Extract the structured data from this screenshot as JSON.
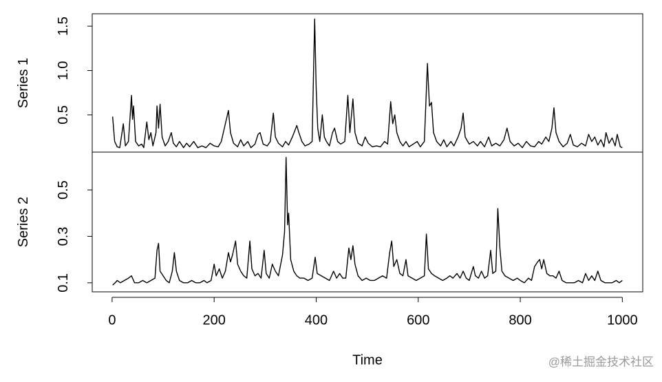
{
  "chart_data": [
    {
      "type": "line",
      "ylabel": "Series 1",
      "color": "#000000",
      "xlim": [
        -39,
        1040
      ],
      "ylim": [
        0.08,
        1.64
      ],
      "yticks": [
        0.5,
        {
          "value": 1,
          "label": "1.0"
        },
        1.5
      ],
      "x": [
        1,
        5,
        10,
        15,
        22,
        26,
        32,
        38,
        40,
        42,
        46,
        52,
        58,
        62,
        68,
        72,
        76,
        80,
        86,
        88,
        91,
        94,
        98,
        104,
        110,
        116,
        120,
        126,
        132,
        140,
        146,
        152,
        160,
        168,
        176,
        184,
        192,
        200,
        208,
        214,
        220,
        224,
        228,
        232,
        238,
        246,
        252,
        258,
        266,
        272,
        280,
        286,
        290,
        296,
        304,
        310,
        316,
        320,
        326,
        334,
        340,
        346,
        354,
        362,
        366,
        372,
        378,
        386,
        392,
        397,
        400,
        403,
        407,
        412,
        416,
        420,
        426,
        432,
        436,
        442,
        448,
        456,
        462,
        466,
        472,
        476,
        482,
        490,
        496,
        502,
        510,
        518,
        526,
        534,
        540,
        546,
        550,
        554,
        558,
        564,
        570,
        576,
        582,
        590,
        598,
        604,
        612,
        618,
        622,
        626,
        630,
        636,
        644,
        650,
        656,
        664,
        670,
        678,
        684,
        688,
        692,
        700,
        708,
        716,
        722,
        730,
        738,
        744,
        752,
        760,
        768,
        774,
        780,
        788,
        796,
        804,
        812,
        820,
        828,
        836,
        842,
        850,
        856,
        862,
        866,
        870,
        876,
        884,
        892,
        898,
        904,
        912,
        920,
        928,
        934,
        940,
        946,
        952,
        958,
        964,
        968,
        974,
        980,
        986,
        990,
        996,
        1000
      ],
      "values": [
        0.48,
        0.2,
        0.14,
        0.13,
        0.4,
        0.15,
        0.2,
        0.72,
        0.45,
        0.6,
        0.2,
        0.15,
        0.17,
        0.13,
        0.42,
        0.22,
        0.3,
        0.15,
        0.3,
        0.6,
        0.35,
        0.62,
        0.25,
        0.15,
        0.2,
        0.3,
        0.18,
        0.14,
        0.2,
        0.13,
        0.18,
        0.14,
        0.2,
        0.13,
        0.15,
        0.13,
        0.18,
        0.15,
        0.14,
        0.2,
        0.35,
        0.45,
        0.55,
        0.3,
        0.18,
        0.14,
        0.22,
        0.15,
        0.2,
        0.13,
        0.17,
        0.28,
        0.3,
        0.17,
        0.15,
        0.2,
        0.52,
        0.25,
        0.18,
        0.14,
        0.2,
        0.16,
        0.26,
        0.38,
        0.3,
        0.2,
        0.15,
        0.17,
        0.2,
        1.58,
        0.8,
        0.35,
        0.2,
        0.5,
        0.25,
        0.2,
        0.15,
        0.3,
        0.35,
        0.2,
        0.17,
        0.2,
        0.72,
        0.3,
        0.68,
        0.3,
        0.18,
        0.15,
        0.25,
        0.18,
        0.14,
        0.15,
        0.14,
        0.2,
        0.17,
        0.65,
        0.4,
        0.5,
        0.3,
        0.2,
        0.15,
        0.2,
        0.14,
        0.17,
        0.2,
        0.14,
        0.2,
        1.08,
        0.6,
        0.64,
        0.3,
        0.2,
        0.15,
        0.22,
        0.14,
        0.2,
        0.15,
        0.25,
        0.35,
        0.52,
        0.25,
        0.17,
        0.2,
        0.15,
        0.2,
        0.14,
        0.25,
        0.15,
        0.18,
        0.15,
        0.22,
        0.35,
        0.2,
        0.15,
        0.18,
        0.13,
        0.2,
        0.15,
        0.14,
        0.2,
        0.17,
        0.25,
        0.2,
        0.35,
        0.58,
        0.3,
        0.2,
        0.14,
        0.18,
        0.28,
        0.16,
        0.14,
        0.18,
        0.15,
        0.28,
        0.2,
        0.25,
        0.16,
        0.22,
        0.14,
        0.3,
        0.18,
        0.24,
        0.15,
        0.28,
        0.14,
        0.13
      ]
    },
    {
      "type": "line",
      "ylabel": "Series 2",
      "xlabel": "Time",
      "color": "#000000",
      "xlim": [
        -39,
        1040
      ],
      "ylim": [
        0.061,
        0.663
      ],
      "xticks": [
        0,
        200,
        400,
        600,
        800,
        1000
      ],
      "yticks": [
        0.1,
        0.3,
        0.5
      ],
      "x": [
        1,
        6,
        10,
        16,
        24,
        32,
        38,
        44,
        52,
        60,
        68,
        76,
        84,
        88,
        91,
        94,
        100,
        106,
        112,
        118,
        122,
        126,
        132,
        140,
        148,
        156,
        164,
        172,
        180,
        186,
        194,
        200,
        204,
        210,
        216,
        222,
        228,
        232,
        236,
        242,
        246,
        252,
        258,
        264,
        270,
        274,
        280,
        286,
        292,
        298,
        302,
        308,
        314,
        320,
        326,
        334,
        338,
        341,
        344,
        346,
        350,
        356,
        362,
        368,
        376,
        384,
        392,
        398,
        402,
        410,
        418,
        426,
        434,
        440,
        446,
        452,
        458,
        464,
        468,
        472,
        476,
        482,
        490,
        498,
        506,
        514,
        522,
        530,
        538,
        544,
        548,
        552,
        558,
        564,
        570,
        576,
        580,
        588,
        596,
        604,
        612,
        616,
        620,
        626,
        632,
        640,
        648,
        656,
        662,
        668,
        676,
        682,
        688,
        694,
        700,
        708,
        712,
        718,
        724,
        730,
        736,
        742,
        746,
        752,
        756,
        760,
        764,
        770,
        778,
        786,
        794,
        800,
        808,
        816,
        822,
        828,
        834,
        838,
        842,
        846,
        852,
        858,
        864,
        870,
        876,
        882,
        890,
        898,
        906,
        914,
        922,
        928,
        934,
        940,
        946,
        952,
        958,
        966,
        974,
        980,
        988,
        994,
        1000
      ],
      "values": [
        0.09,
        0.1,
        0.11,
        0.1,
        0.11,
        0.12,
        0.13,
        0.1,
        0.1,
        0.11,
        0.1,
        0.11,
        0.12,
        0.24,
        0.27,
        0.15,
        0.13,
        0.11,
        0.1,
        0.15,
        0.23,
        0.15,
        0.11,
        0.1,
        0.1,
        0.11,
        0.1,
        0.1,
        0.11,
        0.1,
        0.11,
        0.18,
        0.13,
        0.16,
        0.12,
        0.15,
        0.23,
        0.19,
        0.22,
        0.28,
        0.18,
        0.15,
        0.13,
        0.12,
        0.28,
        0.16,
        0.13,
        0.14,
        0.12,
        0.24,
        0.14,
        0.12,
        0.18,
        0.15,
        0.13,
        0.22,
        0.32,
        0.64,
        0.35,
        0.4,
        0.2,
        0.15,
        0.13,
        0.12,
        0.12,
        0.11,
        0.12,
        0.21,
        0.14,
        0.13,
        0.12,
        0.11,
        0.15,
        0.12,
        0.14,
        0.12,
        0.12,
        0.25,
        0.2,
        0.26,
        0.18,
        0.13,
        0.11,
        0.12,
        0.11,
        0.11,
        0.12,
        0.13,
        0.12,
        0.23,
        0.28,
        0.17,
        0.2,
        0.14,
        0.13,
        0.2,
        0.13,
        0.12,
        0.11,
        0.12,
        0.13,
        0.31,
        0.16,
        0.14,
        0.13,
        0.12,
        0.11,
        0.12,
        0.13,
        0.12,
        0.14,
        0.12,
        0.15,
        0.12,
        0.11,
        0.17,
        0.13,
        0.12,
        0.15,
        0.12,
        0.13,
        0.24,
        0.14,
        0.15,
        0.42,
        0.25,
        0.15,
        0.13,
        0.12,
        0.11,
        0.12,
        0.11,
        0.1,
        0.12,
        0.11,
        0.17,
        0.19,
        0.2,
        0.16,
        0.2,
        0.14,
        0.13,
        0.13,
        0.12,
        0.15,
        0.11,
        0.1,
        0.1,
        0.1,
        0.11,
        0.1,
        0.14,
        0.11,
        0.13,
        0.11,
        0.15,
        0.11,
        0.1,
        0.1,
        0.1,
        0.11,
        0.1,
        0.11
      ]
    }
  ],
  "watermark": "@稀土掘金技术社区"
}
